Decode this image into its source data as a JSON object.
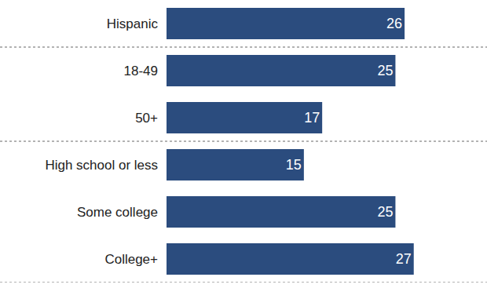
{
  "chart_data": {
    "type": "bar",
    "orientation": "horizontal",
    "categories": [
      "Hispanic",
      "18-49",
      "50+",
      "High school or less",
      "Some college",
      "College+"
    ],
    "values": [
      26,
      25,
      17,
      15,
      25,
      27
    ],
    "color": "#2b4c7e",
    "xlim": [
      0,
      35
    ],
    "data_labels": true,
    "tick_labels": "y",
    "grid": false
  }
}
